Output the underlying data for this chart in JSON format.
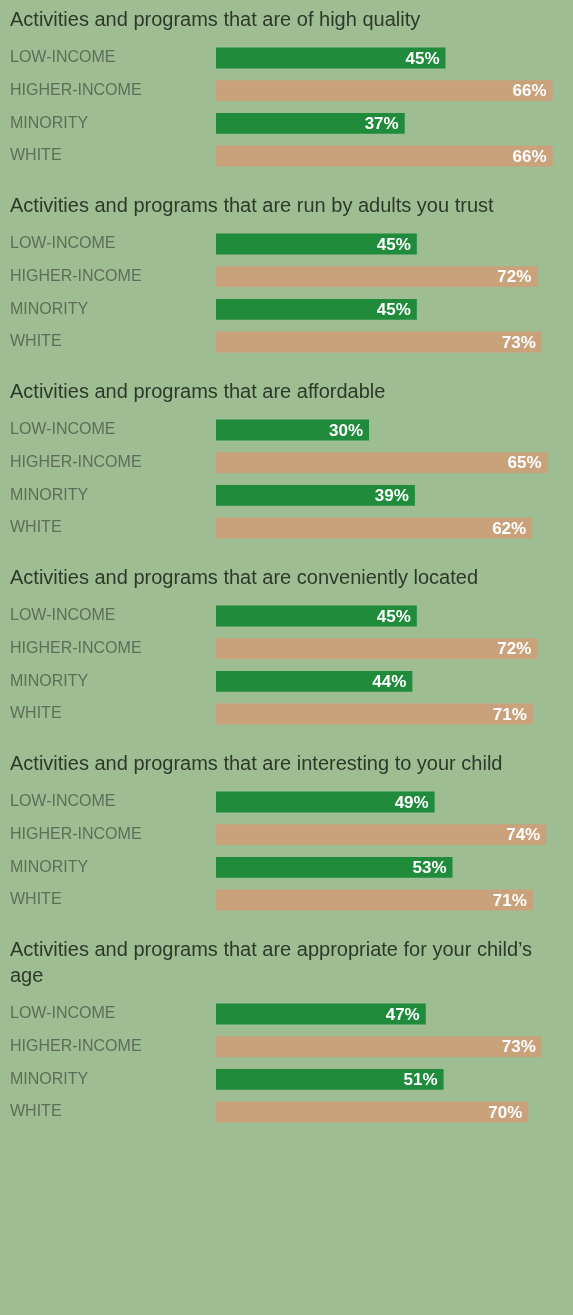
{
  "chart_data": [
    {
      "type": "bar",
      "orientation": "horizontal",
      "title": "Activities and programs that are of high quality",
      "categories": [
        "LOW-INCOME",
        "HIGHER-INCOME",
        "MINORITY",
        "WHITE"
      ],
      "values": [
        45,
        66,
        37,
        66
      ],
      "value_labels": [
        "45%",
        "66%",
        "37%",
        "66%"
      ],
      "colors": [
        "#1f8b3b",
        "#c9a27b",
        "#1f8b3b",
        "#c9a27b"
      ],
      "tick_labels": "y",
      "grid": false,
      "legend": false
    },
    {
      "type": "bar",
      "orientation": "horizontal",
      "title": "Activities and programs that are run by adults you trust",
      "categories": [
        "LOW-INCOME",
        "HIGHER-INCOME",
        "MINORITY",
        "WHITE"
      ],
      "values": [
        45,
        72,
        45,
        73
      ],
      "value_labels": [
        "45%",
        "72%",
        "45%",
        "73%"
      ],
      "colors": [
        "#1f8b3b",
        "#c9a27b",
        "#1f8b3b",
        "#c9a27b"
      ],
      "tick_labels": "y",
      "grid": false,
      "legend": false
    },
    {
      "type": "bar",
      "orientation": "horizontal",
      "title": "Activities and programs that are affordable",
      "categories": [
        "LOW-INCOME",
        "HIGHER-INCOME",
        "MINORITY",
        "WHITE"
      ],
      "values": [
        30,
        65,
        39,
        62
      ],
      "value_labels": [
        "30%",
        "65%",
        "39%",
        "62%"
      ],
      "colors": [
        "#1f8b3b",
        "#c9a27b",
        "#1f8b3b",
        "#c9a27b"
      ],
      "tick_labels": "y",
      "grid": false,
      "legend": false
    },
    {
      "type": "bar",
      "orientation": "horizontal",
      "title": "Activities and programs that are conveniently located",
      "categories": [
        "LOW-INCOME",
        "HIGHER-INCOME",
        "MINORITY",
        "WHITE"
      ],
      "values": [
        45,
        72,
        44,
        71
      ],
      "value_labels": [
        "45%",
        "72%",
        "44%",
        "71%"
      ],
      "colors": [
        "#1f8b3b",
        "#c9a27b",
        "#1f8b3b",
        "#c9a27b"
      ],
      "tick_labels": "y",
      "grid": false,
      "legend": false
    },
    {
      "type": "bar",
      "orientation": "horizontal",
      "title": "Activities and programs that are interesting to your child",
      "categories": [
        "LOW-INCOME",
        "HIGHER-INCOME",
        "MINORITY",
        "WHITE"
      ],
      "values": [
        49,
        74,
        53,
        71
      ],
      "value_labels": [
        "49%",
        "74%",
        "53%",
        "71%"
      ],
      "colors": [
        "#1f8b3b",
        "#c9a27b",
        "#1f8b3b",
        "#c9a27b"
      ],
      "tick_labels": "y",
      "grid": false,
      "legend": false
    },
    {
      "type": "bar",
      "orientation": "horizontal",
      "title": "Activities and programs that are appropriate for your child’s age",
      "categories": [
        "LOW-INCOME",
        "HIGHER-INCOME",
        "MINORITY",
        "WHITE"
      ],
      "values": [
        47,
        73,
        51,
        70
      ],
      "value_labels": [
        "47%",
        "73%",
        "51%",
        "70%"
      ],
      "colors": [
        "#1f8b3b",
        "#c9a27b",
        "#1f8b3b",
        "#c9a27b"
      ],
      "tick_labels": "y",
      "grid": false,
      "legend": false
    }
  ]
}
